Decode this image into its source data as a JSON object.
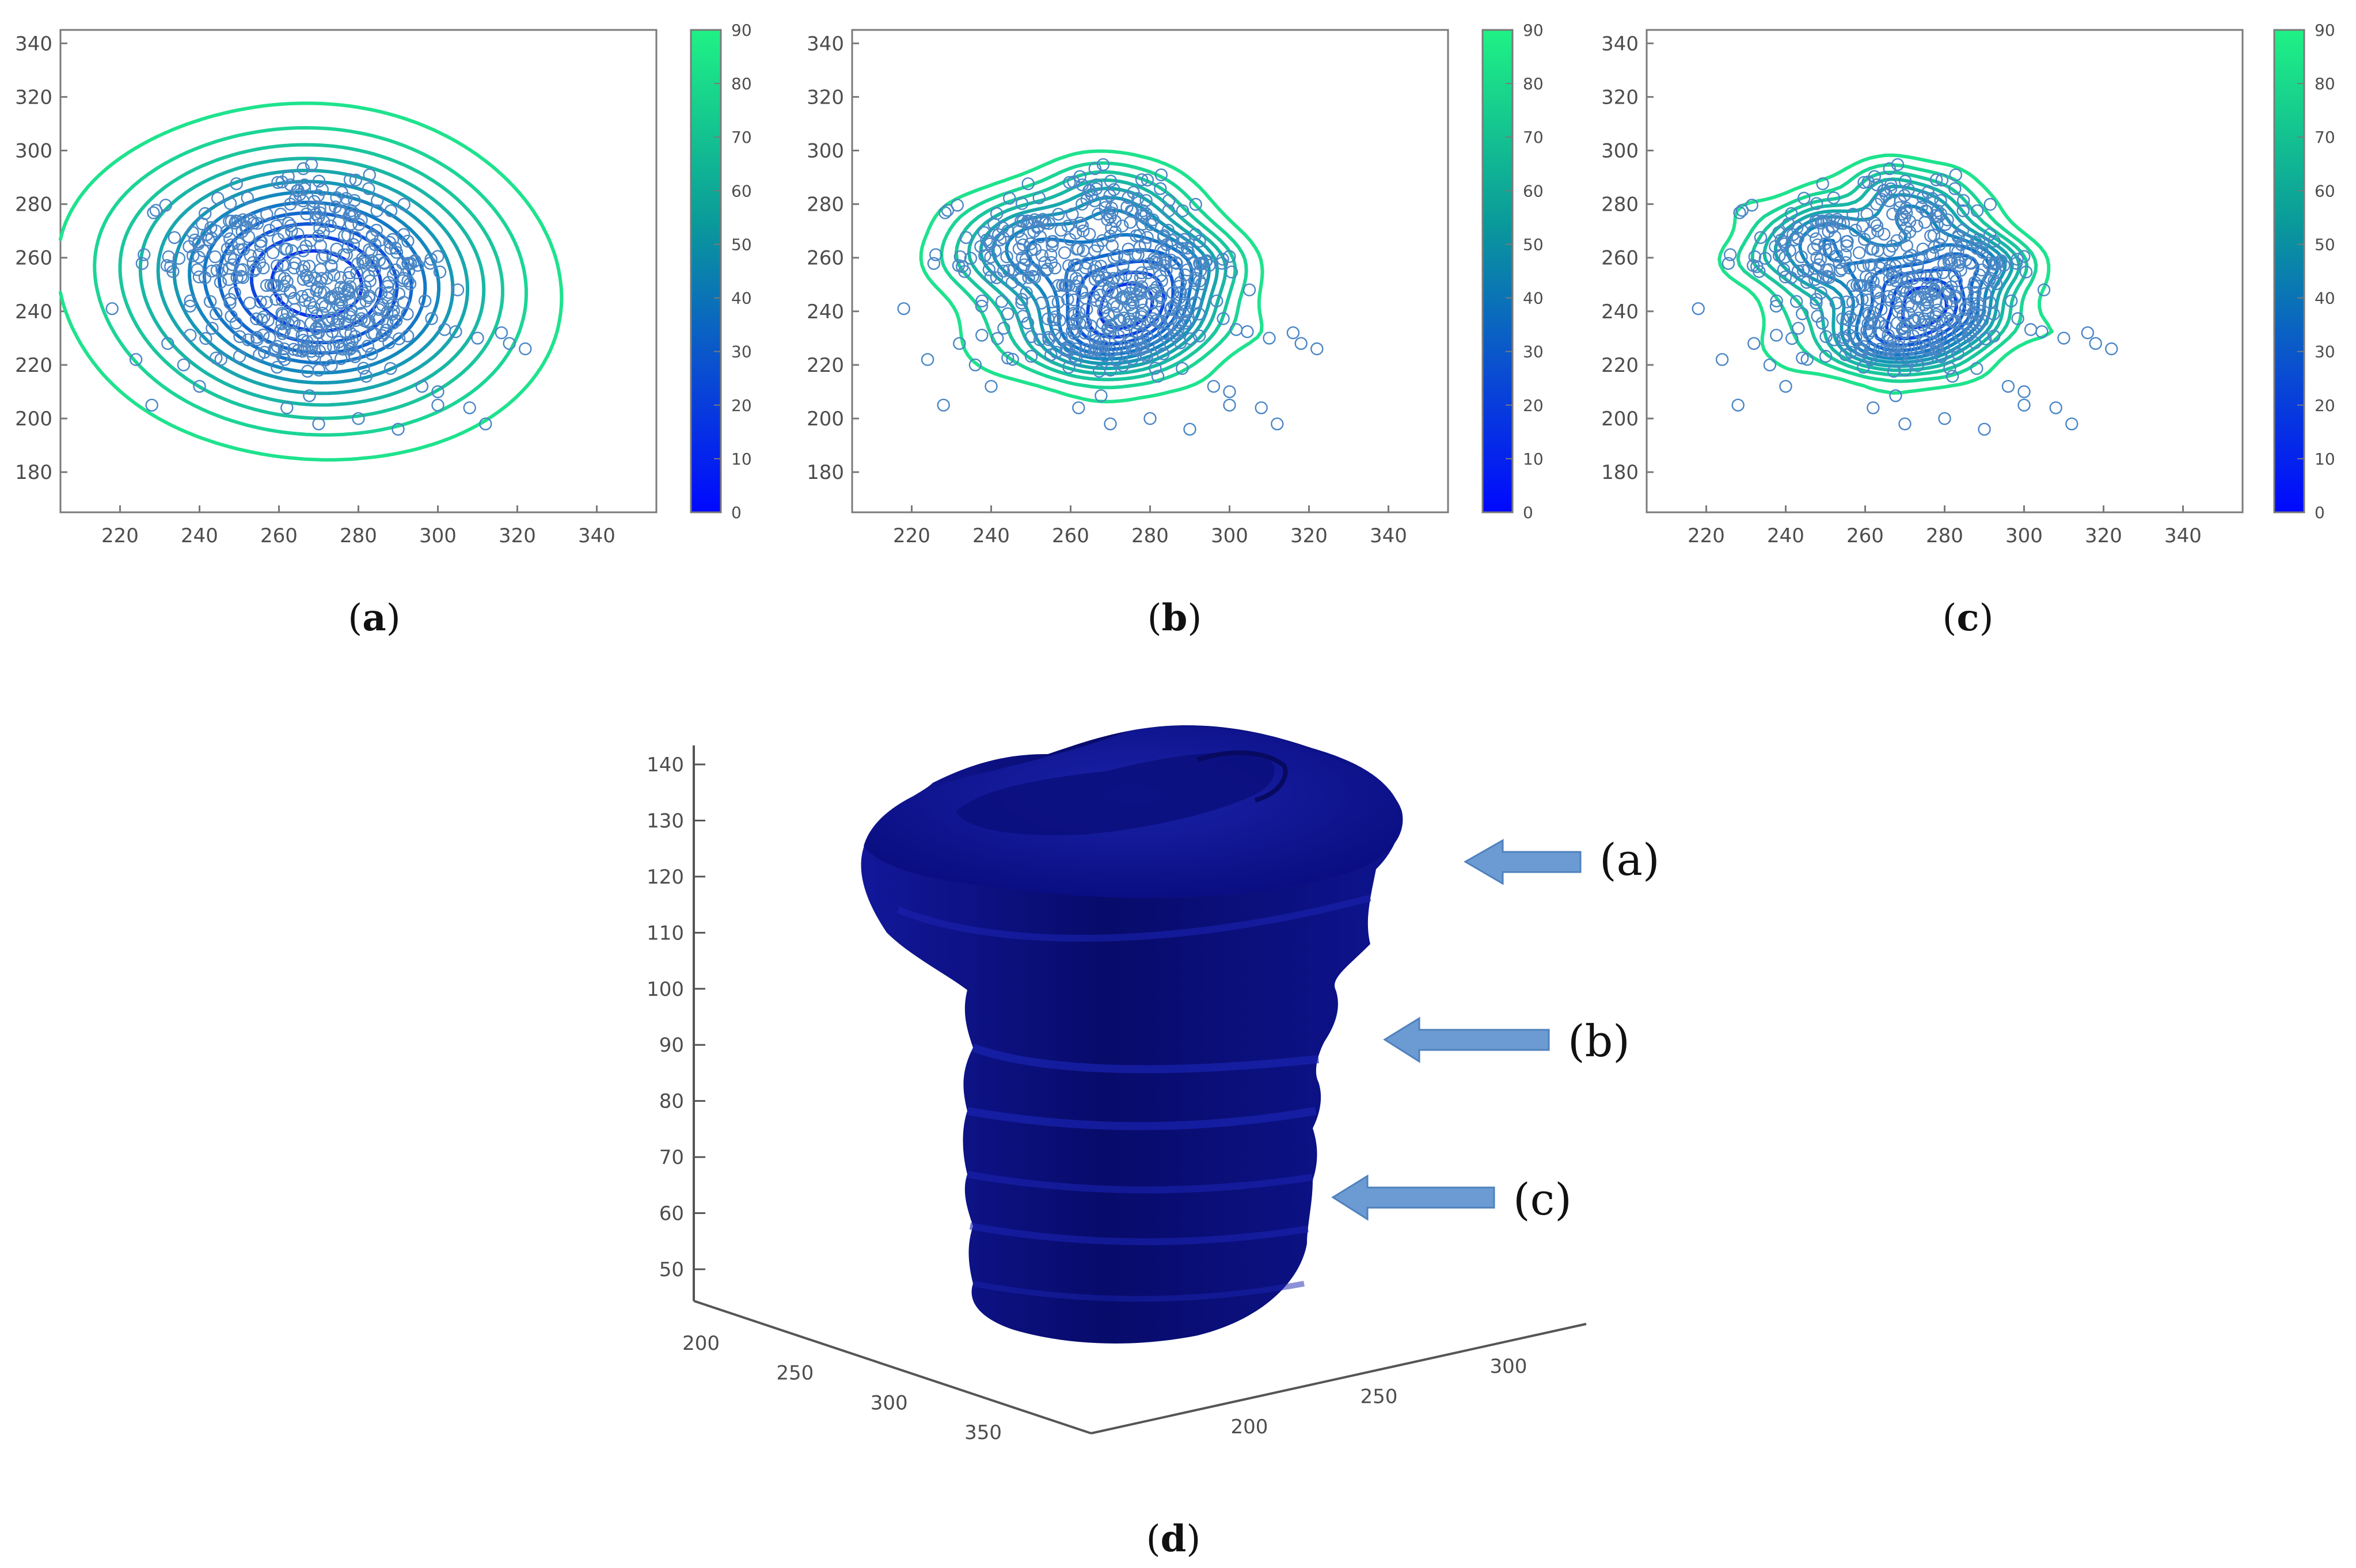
{
  "panels": [
    {
      "id": "a",
      "caption_open": "(",
      "caption_letter": "a",
      "caption_close": ")"
    },
    {
      "id": "b",
      "caption_open": "(",
      "caption_letter": "b",
      "caption_close": ")"
    },
    {
      "id": "c",
      "caption_open": "(",
      "caption_letter": "c",
      "caption_close": ")"
    },
    {
      "id": "d",
      "caption_open": "(",
      "caption_letter": "d",
      "caption_close": ")"
    }
  ],
  "arrow_labels": [
    "(a)",
    "(b)",
    "(c)"
  ],
  "colors": {
    "contour_low": "#0a1ff5",
    "contour_high": "#1ff285",
    "scatter": "#4a86c5",
    "surface": "#0b0f8a",
    "arrow": "#6b9bd2"
  },
  "chart_data": [
    {
      "type": "scatter",
      "overlay": "contour",
      "xlim": [
        205,
        355
      ],
      "ylim": [
        165,
        345
      ],
      "xticks": [
        220,
        240,
        260,
        280,
        300,
        320,
        340
      ],
      "yticks": [
        180,
        200,
        220,
        240,
        260,
        280,
        300,
        320,
        340
      ],
      "colorbar": {
        "min": 0,
        "max": 90,
        "ticks": [
          0,
          10,
          20,
          30,
          40,
          50,
          60,
          70,
          80,
          90
        ]
      },
      "contour_levels": 12,
      "contour_bandwidth": 22,
      "grid": false
    },
    {
      "type": "scatter",
      "overlay": "contour",
      "xlim": [
        205,
        355
      ],
      "ylim": [
        165,
        345
      ],
      "xticks": [
        220,
        240,
        260,
        280,
        300,
        320,
        340
      ],
      "yticks": [
        180,
        200,
        220,
        240,
        260,
        280,
        300,
        320,
        340
      ],
      "colorbar": {
        "min": 0,
        "max": 90,
        "ticks": [
          0,
          10,
          20,
          30,
          40,
          50,
          60,
          70,
          80,
          90
        ]
      },
      "contour_levels": 12,
      "contour_bandwidth": 8,
      "grid": false
    },
    {
      "type": "scatter",
      "overlay": "contour",
      "xlim": [
        205,
        355
      ],
      "ylim": [
        165,
        345
      ],
      "xticks": [
        220,
        240,
        260,
        280,
        300,
        320,
        340
      ],
      "yticks": [
        180,
        200,
        220,
        240,
        260,
        280,
        300,
        320,
        340
      ],
      "colorbar": {
        "min": 0,
        "max": 90,
        "ticks": [
          0,
          10,
          20,
          30,
          40,
          50,
          60,
          70,
          80,
          90
        ]
      },
      "contour_levels": 12,
      "contour_bandwidth": 6,
      "grid": false
    },
    {
      "type": "surface3d",
      "zticks": [
        50,
        60,
        70,
        80,
        90,
        100,
        110,
        120,
        130,
        140
      ],
      "xticks": [
        200,
        250,
        300,
        350
      ],
      "yticks": [
        200,
        250,
        300
      ],
      "zlim": [
        40,
        145
      ]
    }
  ]
}
